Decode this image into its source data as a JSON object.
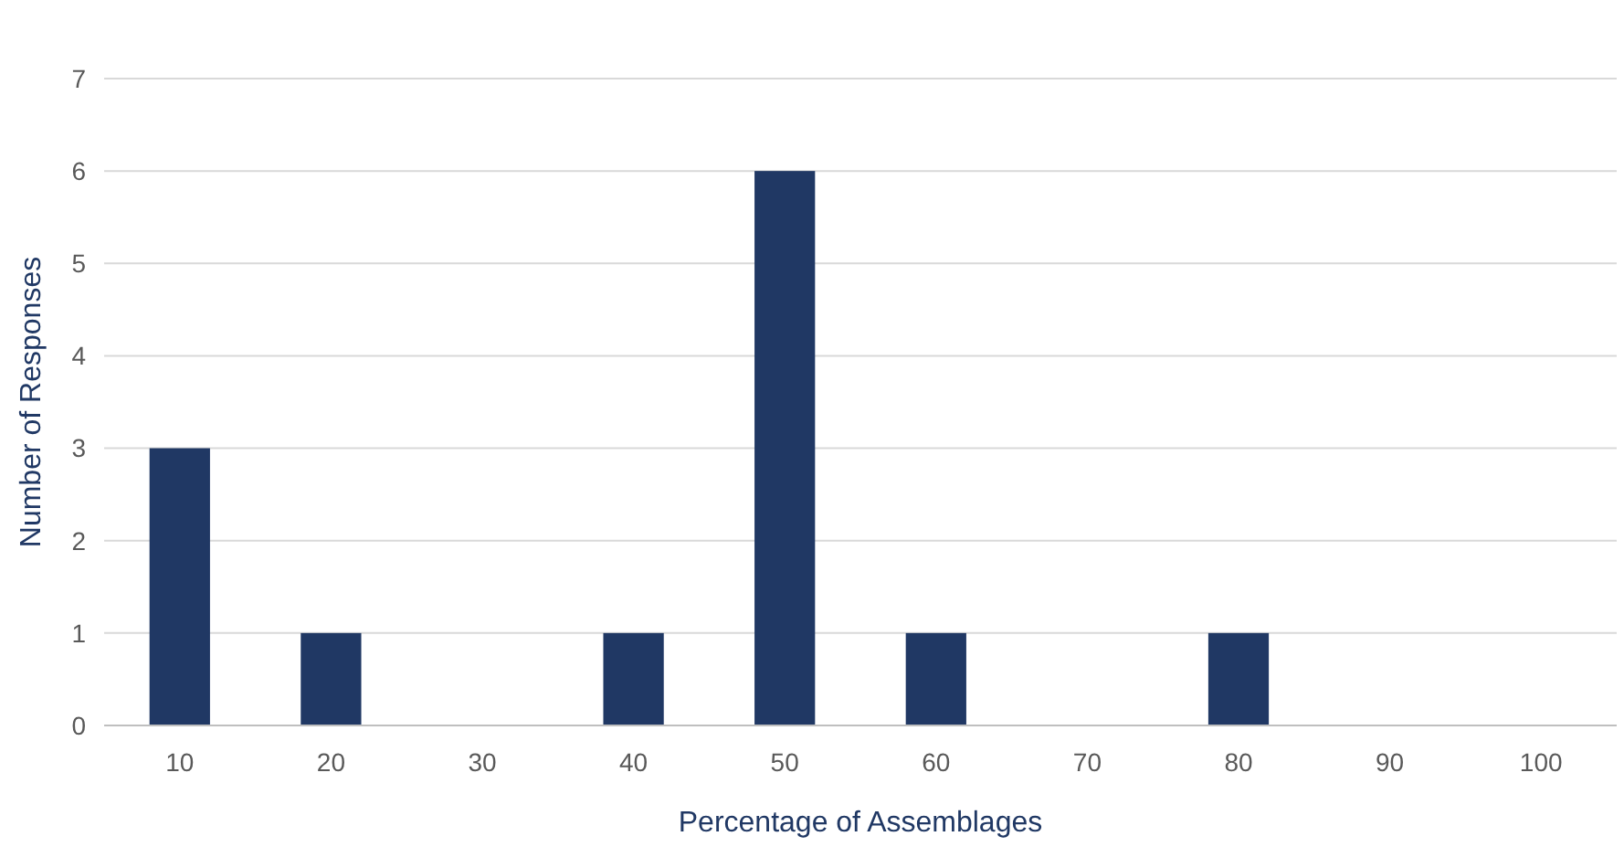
{
  "chart_data": {
    "type": "bar",
    "xlabel": "Percentage of Assemblages",
    "ylabel": "Number of Responses",
    "categories": [
      "10",
      "20",
      "30",
      "40",
      "50",
      "60",
      "70",
      "80",
      "90",
      "100"
    ],
    "values": [
      3,
      1,
      0,
      1,
      6,
      1,
      0,
      1,
      0,
      0
    ],
    "color": "#203864",
    "ylim": [
      0,
      7
    ],
    "yticks": [
      0,
      1,
      2,
      3,
      4,
      5,
      6,
      7
    ],
    "grid": "y"
  }
}
